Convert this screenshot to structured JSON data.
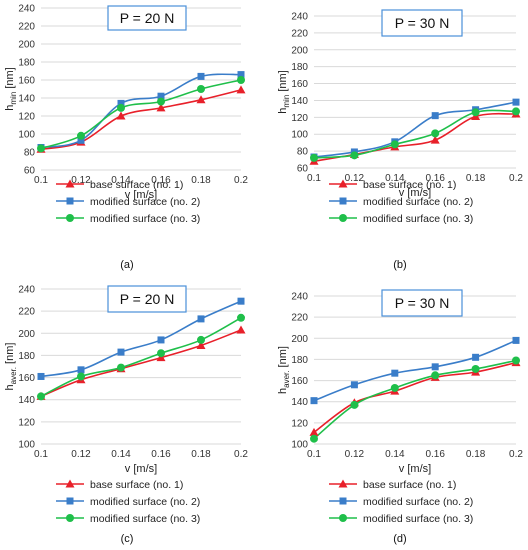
{
  "colors": {
    "base": "#e8202a",
    "modified2": "#3a7dc9",
    "modified3": "#1fbf4a",
    "grid": "#d9d9d9",
    "box_border": "#4a90d9"
  },
  "chart_data": [
    {
      "type": "line",
      "panel_label": "(a)",
      "annotation": "P = 20 N",
      "x": [
        0.1,
        0.12,
        0.14,
        0.16,
        0.18,
        0.2
      ],
      "x_ticks": [
        "0.1",
        "0.12",
        "0.14",
        "0.16",
        "0.18",
        "0.2"
      ],
      "xlim": [
        0.1,
        0.2
      ],
      "xlabel": "v [m/s]",
      "ylabel_main": "h",
      "ylabel_sub": "min",
      "ylabel_unit": " [nm]",
      "ylim": [
        60,
        240
      ],
      "y_ticks": [
        60,
        80,
        100,
        120,
        140,
        160,
        180,
        200,
        220,
        240
      ],
      "grid": true,
      "legend_position": "bottom",
      "series": [
        {
          "name": "base surface (no. 1)",
          "marker": "triangle",
          "color_key": "base",
          "values": [
            83,
            91,
            120,
            129,
            138,
            149
          ]
        },
        {
          "name": "modified surface (no. 2)",
          "marker": "square",
          "color_key": "modified2",
          "values": [
            85,
            93,
            134,
            142,
            164,
            166
          ]
        },
        {
          "name": "modified surface (no. 3)",
          "marker": "circle",
          "color_key": "modified3",
          "values": [
            84,
            98,
            129,
            136,
            150,
            160
          ]
        }
      ]
    },
    {
      "type": "line",
      "panel_label": "(b)",
      "annotation": "P = 30 N",
      "x": [
        0.1,
        0.12,
        0.14,
        0.16,
        0.18,
        0.2
      ],
      "x_ticks": [
        "0.1",
        "0.12",
        "0.14",
        "0.16",
        "0.18",
        "0.2"
      ],
      "xlim": [
        0.1,
        0.2
      ],
      "xlabel": "v [m/s]",
      "ylabel_main": "h",
      "ylabel_sub": "min",
      "ylabel_unit": " [nm]",
      "ylim": [
        60,
        240
      ],
      "y_ticks": [
        60,
        80,
        100,
        120,
        140,
        160,
        180,
        200,
        220,
        240
      ],
      "grid": true,
      "legend_position": "bottom",
      "series": [
        {
          "name": "base surface (no. 1)",
          "marker": "triangle",
          "color_key": "base",
          "values": [
            68,
            76,
            85,
            93,
            121,
            124
          ]
        },
        {
          "name": "modified surface (no. 2)",
          "marker": "square",
          "color_key": "modified2",
          "values": [
            73,
            79,
            91,
            122,
            129,
            138
          ]
        },
        {
          "name": "modified surface (no. 3)",
          "marker": "circle",
          "color_key": "modified3",
          "values": [
            72,
            75,
            88,
            101,
            126,
            127
          ]
        }
      ]
    },
    {
      "type": "line",
      "panel_label": "(c)",
      "annotation": "P = 20 N",
      "x": [
        0.1,
        0.12,
        0.14,
        0.16,
        0.18,
        0.2
      ],
      "x_ticks": [
        "0.1",
        "0.12",
        "0.14",
        "0.16",
        "0.18",
        "0.2"
      ],
      "xlim": [
        0.1,
        0.2
      ],
      "xlabel": "v [m/s]",
      "ylabel_main": "h",
      "ylabel_sub": "aver.",
      "ylabel_unit": " [nm]",
      "ylim": [
        100,
        240
      ],
      "y_ticks": [
        100,
        120,
        140,
        160,
        180,
        200,
        220,
        240
      ],
      "grid": true,
      "legend_position": "bottom",
      "series": [
        {
          "name": "base surface (no. 1)",
          "marker": "triangle",
          "color_key": "base",
          "values": [
            143,
            158,
            168,
            178,
            189,
            203
          ]
        },
        {
          "name": "modified surface (no. 2)",
          "marker": "square",
          "color_key": "modified2",
          "values": [
            161,
            167,
            183,
            194,
            213,
            229
          ]
        },
        {
          "name": "modified surface (no. 3)",
          "marker": "circle",
          "color_key": "modified3",
          "values": [
            143,
            161,
            169,
            182,
            194,
            214
          ]
        }
      ]
    },
    {
      "type": "line",
      "panel_label": "(d)",
      "annotation": "P = 30 N",
      "x": [
        0.1,
        0.12,
        0.14,
        0.16,
        0.18,
        0.2
      ],
      "x_ticks": [
        "0.1",
        "0.12",
        "0.14",
        "0.16",
        "0.18",
        "0.2"
      ],
      "xlim": [
        0.1,
        0.2
      ],
      "xlabel": "v [m/s]",
      "ylabel_main": "h",
      "ylabel_sub": "aver.",
      "ylabel_unit": " [nm]",
      "ylim": [
        100,
        240
      ],
      "y_ticks": [
        100,
        120,
        140,
        160,
        180,
        200,
        220,
        240
      ],
      "grid": true,
      "legend_position": "bottom",
      "series": [
        {
          "name": "base surface (no. 1)",
          "marker": "triangle",
          "color_key": "base",
          "values": [
            111,
            139,
            150,
            163,
            168,
            177
          ]
        },
        {
          "name": "modified surface (no. 2)",
          "marker": "square",
          "color_key": "modified2",
          "values": [
            141,
            156,
            167,
            173,
            182,
            198
          ]
        },
        {
          "name": "modified surface (no. 3)",
          "marker": "circle",
          "color_key": "modified3",
          "values": [
            105,
            137,
            153,
            165,
            171,
            179
          ]
        }
      ]
    }
  ]
}
